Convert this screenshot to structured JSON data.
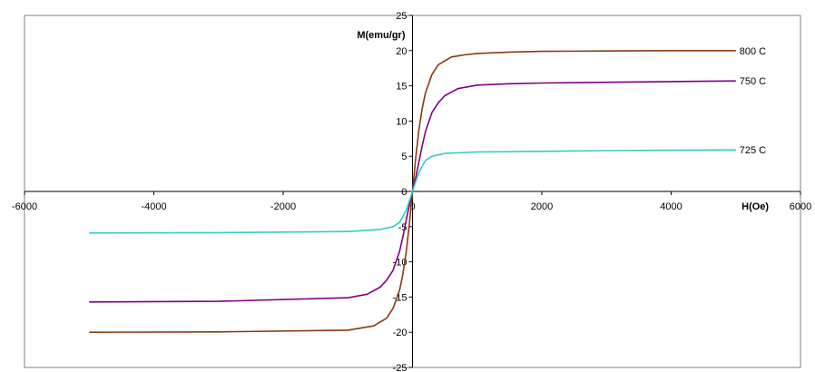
{
  "chart_data": {
    "type": "line",
    "xlabel": "H(Oe)",
    "ylabel": "M(emu/gr)",
    "xlim": [
      -6000,
      6000
    ],
    "ylim": [
      -25,
      25
    ],
    "x_ticks": [
      -6000,
      -4000,
      -2000,
      0,
      2000,
      4000,
      6000
    ],
    "y_ticks": [
      -25,
      -20,
      -15,
      -10,
      -5,
      0,
      5,
      10,
      15,
      20,
      25
    ],
    "x_tick_labels": [
      "-6000",
      "-4000",
      "-2000",
      "0",
      "2000",
      "4000",
      "6000"
    ],
    "y_tick_labels": [
      "-25",
      "-20",
      "-15",
      "-10",
      "-5",
      "0",
      "5",
      "10",
      "15",
      "20",
      "25"
    ],
    "grid": false,
    "legend": "none (series labeled directly at right end of curves)",
    "series": [
      {
        "name": "800 C",
        "color": "#8B3A10",
        "x": [
          -5000,
          -3000,
          -1000,
          -600,
          -400,
          -300,
          -200,
          -150,
          -100,
          -50,
          0,
          50,
          100,
          150,
          200,
          300,
          400,
          600,
          800,
          1000,
          1500,
          2000,
          3000,
          4000,
          5000
        ],
        "y": [
          -20.0,
          -19.95,
          -19.7,
          -19.1,
          -18.0,
          -16.6,
          -14.0,
          -11.8,
          -8.8,
          -4.8,
          0.0,
          4.8,
          8.8,
          11.8,
          14.0,
          16.6,
          18.0,
          19.1,
          19.4,
          19.6,
          19.8,
          19.9,
          19.95,
          20.0,
          20.0
        ]
      },
      {
        "name": "750 C",
        "color": "#800080",
        "x": [
          -5000,
          -3000,
          -1000,
          -700,
          -500,
          -400,
          -300,
          -200,
          -150,
          -100,
          -50,
          0,
          50,
          100,
          150,
          200,
          300,
          400,
          500,
          700,
          1000,
          1500,
          2000,
          3000,
          4000,
          5000
        ],
        "y": [
          -15.7,
          -15.6,
          -15.1,
          -14.6,
          -13.6,
          -12.6,
          -11.2,
          -8.5,
          -6.5,
          -4.2,
          -2.0,
          0.0,
          2.0,
          4.2,
          6.5,
          8.5,
          11.2,
          12.6,
          13.6,
          14.6,
          15.1,
          15.3,
          15.4,
          15.5,
          15.6,
          15.7
        ]
      },
      {
        "name": "725 C",
        "color": "#33CCCC",
        "x": [
          -5000,
          -3000,
          -1000,
          -500,
          -300,
          -200,
          -150,
          -100,
          -50,
          0,
          50,
          100,
          150,
          200,
          300,
          500,
          1000,
          2000,
          3000,
          4000,
          5000
        ],
        "y": [
          -5.9,
          -5.85,
          -5.7,
          -5.4,
          -5.0,
          -4.4,
          -3.6,
          -2.7,
          -1.4,
          0.0,
          1.4,
          2.7,
          3.6,
          4.4,
          5.0,
          5.4,
          5.6,
          5.7,
          5.8,
          5.85,
          5.9
        ]
      }
    ]
  }
}
